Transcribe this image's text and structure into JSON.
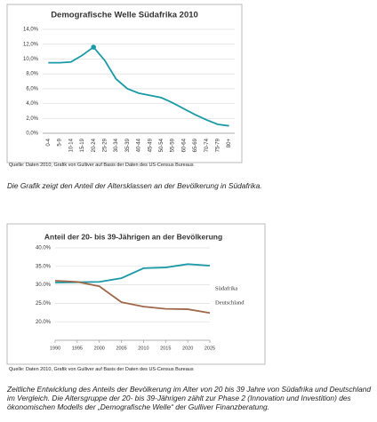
{
  "chart_data": [
    {
      "type": "line",
      "title": "Demografische Welle Südafrika 2010",
      "categories": [
        "0-4",
        "5-9",
        "10-14",
        "15-19",
        "20-24",
        "25-29",
        "30-34",
        "35-39",
        "40-44",
        "45-49",
        "50-54",
        "55-59",
        "60-64",
        "65-69",
        "70-74",
        "75-79",
        "80+"
      ],
      "values": [
        9.5,
        9.5,
        9.6,
        10.5,
        11.6,
        9.8,
        7.3,
        6.0,
        5.4,
        5.1,
        4.8,
        4.1,
        3.3,
        2.5,
        1.8,
        1.2,
        1.0
      ],
      "color": "#1a9aa6",
      "marker_at": 4,
      "ylim": [
        0,
        14
      ],
      "yticks": [
        {
          "value": 0,
          "label": "0,0%"
        },
        {
          "value": 2,
          "label": "2,0%"
        },
        {
          "value": 4,
          "label": "4,0%"
        },
        {
          "value": 6,
          "label": "6,0%"
        },
        {
          "value": 8,
          "label": "8,0%"
        },
        {
          "value": 10,
          "label": "10,0%"
        },
        {
          "value": 12,
          "label": "12,0%"
        },
        {
          "value": 14,
          "label": "14,0%"
        }
      ],
      "grid": true,
      "source": "Quelle: Daten 2010, Grafik von Gulliver auf Basis der Daten des US-Census Bureaus",
      "caption": "Die Grafik zeigt den Anteil der Altersklassen an der Bevölkerung in Südafrika."
    },
    {
      "type": "line",
      "title": "Anteil der 20- bis 39-Jährigen an der Bevölkerung",
      "x": [
        1990,
        1995,
        2000,
        2005,
        2010,
        2015,
        2020,
        2025
      ],
      "xlim": [
        1990,
        2025
      ],
      "xticks": [
        1990,
        1995,
        2000,
        2005,
        2010,
        2015,
        2020,
        2025
      ],
      "series": [
        {
          "name": "Südafrika",
          "color": "#1a9aa6",
          "values": [
            30.6,
            30.7,
            30.8,
            31.8,
            34.5,
            34.7,
            35.6,
            35.2
          ]
        },
        {
          "name": "Deutschland",
          "color": "#a0684a",
          "values": [
            31.1,
            30.8,
            29.6,
            25.3,
            24.1,
            23.5,
            23.4,
            22.4
          ]
        }
      ],
      "ylim": [
        15,
        40
      ],
      "yticks": [
        {
          "value": 20,
          "label": "20.0%"
        },
        {
          "value": 25,
          "label": "25.0%"
        },
        {
          "value": 30,
          "label": "30.0%"
        },
        {
          "value": 35,
          "label": "35.0%"
        },
        {
          "value": 40,
          "label": "40.0%"
        }
      ],
      "grid": true,
      "source": "Quelle: Daten 2010, Grafik von Gulliver auf Basis der Daten des US-Census Bureaus",
      "caption": "Zeitliche Entwicklung des Anteils der Bevölkerung im Alter von 20 bis 39 Jahre von Südafrika und Deutschland im Vergleich. Die Altersgruppe der 20- bis 39-Jährigen zählt zur Phase 2 (Innovation und Investition) des ökonomischen Modells der „Demografische Welle“ der Gulliver Finanzberatung."
    }
  ]
}
